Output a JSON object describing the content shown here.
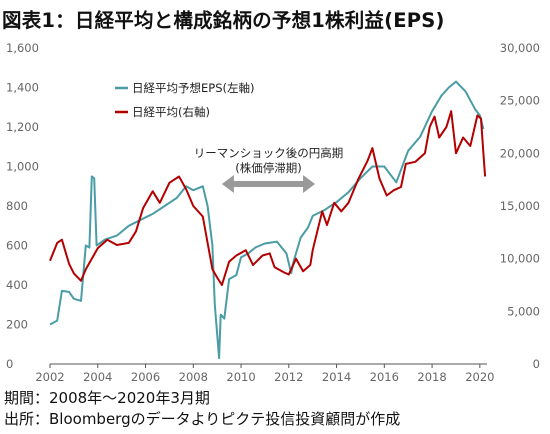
{
  "title": "図表1：日経平均と構成銘柄の予想1株利益(EPS)",
  "footnotes": {
    "period": "期間：2008年～2020年3月期",
    "source": "出所：Bloombergのデータよりピクテ投信投資顧問が作成"
  },
  "chart_data": {
    "type": "line",
    "x_ticks": [
      "2002",
      "2004",
      "2006",
      "2008",
      "2010",
      "2012",
      "2014",
      "2016",
      "2018",
      "2020"
    ],
    "xlim": [
      2002,
      2020.3
    ],
    "left_axis": {
      "ticks": [
        "0",
        "200",
        "400",
        "600",
        "800",
        "1,000",
        "1,200",
        "1,400",
        "1,600"
      ],
      "ylim": [
        0,
        1600
      ]
    },
    "right_axis": {
      "ticks": [
        "0",
        "5,000",
        "10,000",
        "15,000",
        "20,000",
        "25,000",
        "30,000"
      ],
      "ylim": [
        0,
        30000
      ]
    },
    "legend": [
      "日経平均予想EPS(左軸)",
      "日経平均(右軸)"
    ],
    "legend_position": "top-left",
    "annotation": {
      "line1": "リーマンショック後の円高期",
      "line2": "(株価停滞期)",
      "arrow_from_year": 2009.2,
      "arrow_to_year": 2013.1
    },
    "colors": {
      "eps": "#4a9ca5",
      "nikkei": "#b30000",
      "arrow": "#9a9a9a"
    },
    "series": [
      {
        "name": "日経平均予想EPS(左軸)",
        "axis": "left",
        "points": [
          [
            2002.0,
            200
          ],
          [
            2002.3,
            220
          ],
          [
            2002.5,
            370
          ],
          [
            2002.8,
            365
          ],
          [
            2003.0,
            330
          ],
          [
            2003.3,
            320
          ],
          [
            2003.5,
            600
          ],
          [
            2003.65,
            590
          ],
          [
            2003.75,
            950
          ],
          [
            2003.85,
            940
          ],
          [
            2003.95,
            600
          ],
          [
            2004.3,
            630
          ],
          [
            2004.8,
            650
          ],
          [
            2005.3,
            700
          ],
          [
            2005.8,
            730
          ],
          [
            2006.3,
            760
          ],
          [
            2006.8,
            800
          ],
          [
            2007.3,
            840
          ],
          [
            2007.7,
            900
          ],
          [
            2008.0,
            880
          ],
          [
            2008.4,
            900
          ],
          [
            2008.6,
            800
          ],
          [
            2008.8,
            600
          ],
          [
            2008.9,
            300
          ],
          [
            2009.0,
            150
          ],
          [
            2009.08,
            30
          ],
          [
            2009.15,
            250
          ],
          [
            2009.3,
            230
          ],
          [
            2009.5,
            430
          ],
          [
            2009.8,
            450
          ],
          [
            2010.0,
            540
          ],
          [
            2010.3,
            560
          ],
          [
            2010.6,
            590
          ],
          [
            2011.0,
            610
          ],
          [
            2011.5,
            620
          ],
          [
            2011.9,
            560
          ],
          [
            2012.1,
            460
          ],
          [
            2012.2,
            520
          ],
          [
            2012.5,
            640
          ],
          [
            2012.8,
            690
          ],
          [
            2013.0,
            750
          ],
          [
            2013.5,
            780
          ],
          [
            2014.0,
            820
          ],
          [
            2014.5,
            870
          ],
          [
            2015.0,
            940
          ],
          [
            2015.5,
            1000
          ],
          [
            2016.0,
            1000
          ],
          [
            2016.5,
            920
          ],
          [
            2017.0,
            1080
          ],
          [
            2017.5,
            1150
          ],
          [
            2018.0,
            1280
          ],
          [
            2018.4,
            1360
          ],
          [
            2018.7,
            1400
          ],
          [
            2019.0,
            1430
          ],
          [
            2019.4,
            1380
          ],
          [
            2019.8,
            1290
          ],
          [
            2020.0,
            1260
          ],
          [
            2020.15,
            1190
          ]
        ]
      },
      {
        "name": "日経平均(右軸)",
        "axis": "right",
        "points": [
          [
            2002.0,
            9800
          ],
          [
            2002.3,
            11500
          ],
          [
            2002.5,
            11800
          ],
          [
            2002.8,
            9500
          ],
          [
            2003.0,
            8600
          ],
          [
            2003.3,
            7900
          ],
          [
            2003.5,
            9000
          ],
          [
            2003.8,
            10200
          ],
          [
            2004.0,
            11000
          ],
          [
            2004.4,
            11800
          ],
          [
            2004.8,
            11300
          ],
          [
            2005.3,
            11500
          ],
          [
            2005.6,
            12600
          ],
          [
            2005.9,
            14800
          ],
          [
            2006.3,
            16400
          ],
          [
            2006.6,
            15300
          ],
          [
            2007.0,
            17200
          ],
          [
            2007.4,
            17800
          ],
          [
            2007.7,
            16600
          ],
          [
            2008.0,
            15000
          ],
          [
            2008.4,
            14000
          ],
          [
            2008.8,
            9000
          ],
          [
            2009.0,
            8200
          ],
          [
            2009.2,
            7500
          ],
          [
            2009.5,
            9700
          ],
          [
            2009.8,
            10300
          ],
          [
            2010.2,
            10800
          ],
          [
            2010.5,
            9400
          ],
          [
            2010.9,
            10300
          ],
          [
            2011.2,
            10500
          ],
          [
            2011.4,
            9200
          ],
          [
            2011.8,
            8700
          ],
          [
            2012.0,
            8500
          ],
          [
            2012.3,
            10000
          ],
          [
            2012.6,
            8800
          ],
          [
            2012.9,
            9400
          ],
          [
            2013.0,
            10800
          ],
          [
            2013.4,
            14500
          ],
          [
            2013.6,
            13200
          ],
          [
            2013.9,
            15300
          ],
          [
            2014.2,
            14500
          ],
          [
            2014.5,
            15300
          ],
          [
            2014.9,
            17500
          ],
          [
            2015.3,
            19300
          ],
          [
            2015.5,
            20500
          ],
          [
            2015.8,
            17600
          ],
          [
            2016.1,
            16000
          ],
          [
            2016.4,
            16500
          ],
          [
            2016.7,
            16800
          ],
          [
            2016.9,
            19000
          ],
          [
            2017.3,
            19200
          ],
          [
            2017.7,
            20000
          ],
          [
            2017.9,
            22500
          ],
          [
            2018.1,
            23500
          ],
          [
            2018.3,
            21500
          ],
          [
            2018.6,
            22500
          ],
          [
            2018.8,
            24000
          ],
          [
            2019.0,
            20000
          ],
          [
            2019.3,
            21500
          ],
          [
            2019.6,
            20700
          ],
          [
            2019.9,
            23600
          ],
          [
            2020.05,
            23300
          ],
          [
            2020.15,
            20000
          ],
          [
            2020.22,
            17800
          ]
        ]
      }
    ]
  }
}
